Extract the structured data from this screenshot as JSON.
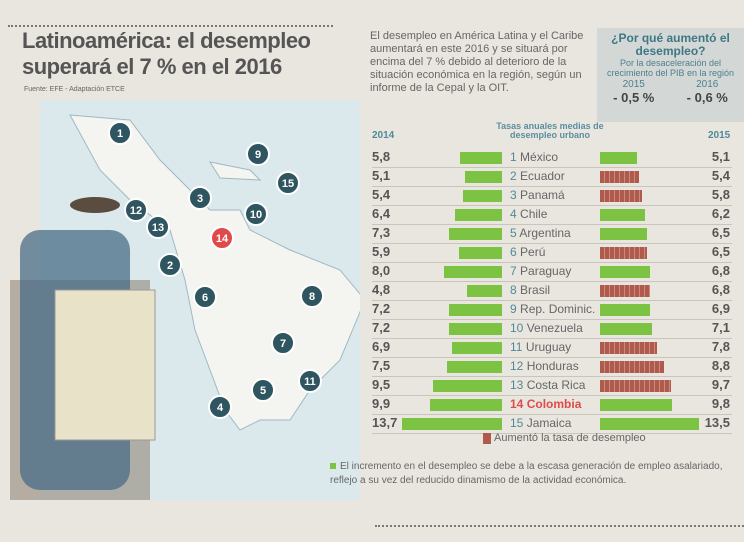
{
  "title": "Latinoamérica: el desempleo superará el 7 % en el 2016",
  "source": "Fuente: EFE - Adaptación ETCE",
  "intro": "El desempleo en América Latina y el Caribe aumentará en este 2016 y se situará por encima del 7 % debido al deterioro de la situación económica en la región, según un informe de la Cepal y la OIT.",
  "why": {
    "heading": "¿Por qué aumentó el desempleo?",
    "text": "Por la desaceleración del crecimiento del PIB en la región",
    "year1": "2015",
    "year2": "2016",
    "val1": "- 0,5 %",
    "val2": "- 0,6 %"
  },
  "legend": "Aumentó la tasa de desempleo",
  "note": "El incremento en el desempleo se debe a la escasa generación de empleo asalariado, reflejo a su vez del reducido dinamismo de la actividad económica.",
  "colors": {
    "green": "#7cc243",
    "red": "#b0594d",
    "highlight": "#e04a4a",
    "marker": "#2e5560"
  },
  "chart_data": {
    "type": "bar",
    "title": "Tasas anuales medias de desempleo urbano",
    "series_labels": [
      "2014",
      "2015"
    ],
    "categories": [
      "México",
      "Ecuador",
      "Panamá",
      "Chile",
      "Argentina",
      "Perú",
      "Paraguay",
      "Brasil",
      "Rep. Dominic.",
      "Venezuela",
      "Uruguay",
      "Honduras",
      "Costa Rica",
      "Colombia",
      "Jamaica"
    ],
    "numbers": [
      "1",
      "2",
      "3",
      "4",
      "5",
      "6",
      "7",
      "8",
      "9",
      "10",
      "11",
      "12",
      "13",
      "14",
      "15"
    ],
    "values_2014": [
      5.8,
      5.1,
      5.4,
      6.4,
      7.3,
      5.9,
      8.0,
      4.8,
      7.2,
      7.2,
      6.9,
      7.5,
      9.5,
      9.9,
      13.7
    ],
    "values_2015": [
      5.1,
      5.4,
      5.8,
      6.2,
      6.5,
      6.5,
      6.8,
      6.8,
      6.9,
      7.1,
      7.8,
      8.8,
      9.7,
      9.8,
      13.5
    ],
    "labels_2014": [
      "5,8",
      "5,1",
      "5,4",
      "6,4",
      "7,3",
      "5,9",
      "8,0",
      "4,8",
      "7,2",
      "7,2",
      "6,9",
      "7,5",
      "9,5",
      "9,9",
      "13,7"
    ],
    "labels_2015": [
      "5,1",
      "5,4",
      "5,8",
      "6,2",
      "6,5",
      "6,5",
      "6,8",
      "6,8",
      "6,9",
      "7,1",
      "7,8",
      "8,8",
      "9,7",
      "9,8",
      "13,5"
    ],
    "increased": [
      false,
      true,
      true,
      false,
      false,
      true,
      false,
      true,
      false,
      false,
      true,
      true,
      true,
      false,
      false
    ],
    "highlighted": "Colombia"
  }
}
